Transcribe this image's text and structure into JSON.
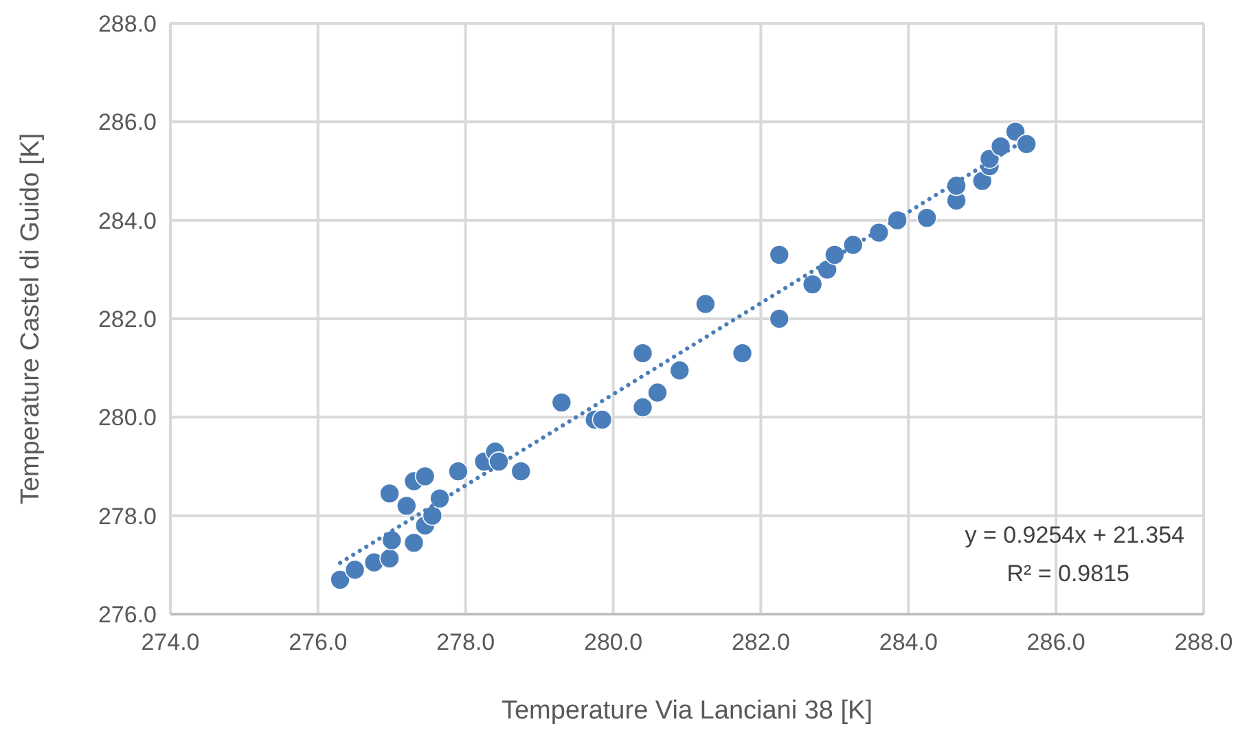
{
  "chart_data": {
    "type": "scatter",
    "xlabel": "Temperature Via Lanciani 38 [K]",
    "ylabel": "Temperature Castel di Guido [K]",
    "xlim": [
      274,
      288
    ],
    "xticks": [
      {
        "value": 274,
        "label": "274.0"
      },
      {
        "value": 276,
        "label": "276.0"
      },
      {
        "value": 278,
        "label": "278.0"
      },
      {
        "value": 280,
        "label": "280.0"
      },
      {
        "value": 282,
        "label": "282.0"
      },
      {
        "value": 284,
        "label": "284.0"
      },
      {
        "value": 286,
        "label": "286.0"
      },
      {
        "value": 288,
        "label": "288.0"
      }
    ],
    "ylim": [
      276,
      288
    ],
    "yticks": [
      {
        "value": 276,
        "label": "276.0"
      },
      {
        "value": 278,
        "label": "278.0"
      },
      {
        "value": 280,
        "label": "280.0"
      },
      {
        "value": 282,
        "label": "282.0"
      },
      {
        "value": 284,
        "label": "284.0"
      },
      {
        "value": 286,
        "label": "286.0"
      },
      {
        "value": 288,
        "label": "288.0"
      }
    ],
    "grid": true,
    "series": [
      {
        "type": "scatter",
        "color": "#4a7ebb",
        "marker": "circle",
        "x": [
          276.3,
          276.5,
          276.76,
          276.97,
          276.97,
          277.0,
          277.2,
          277.3,
          277.3,
          277.45,
          277.45,
          277.55,
          277.65,
          277.9,
          278.25,
          278.4,
          278.45,
          278.75,
          279.3,
          279.75,
          279.85,
          280.4,
          280.4,
          280.6,
          280.9,
          281.25,
          281.75,
          282.25,
          282.25,
          282.7,
          282.9,
          283.0,
          283.25,
          283.6,
          283.85,
          284.25,
          284.65,
          284.65,
          285.0,
          285.1,
          285.1,
          285.25,
          285.45,
          285.6
        ],
        "values": [
          276.7,
          276.9,
          277.05,
          277.13,
          278.45,
          277.5,
          278.2,
          277.45,
          278.7,
          278.8,
          277.8,
          278.0,
          278.35,
          278.9,
          279.1,
          279.3,
          279.1,
          278.9,
          280.3,
          279.95,
          279.95,
          281.3,
          280.2,
          280.5,
          280.95,
          282.3,
          281.3,
          283.3,
          282.0,
          282.7,
          283.0,
          283.3,
          283.5,
          283.75,
          284.0,
          284.05,
          284.4,
          284.7,
          284.8,
          285.1,
          285.25,
          285.5,
          285.8,
          285.55
        ]
      },
      {
        "type": "line",
        "color": "#4a7ebb",
        "line_style": "dotted",
        "marker": "none",
        "x": [
          276.3,
          285.6
        ],
        "values": [
          277.04,
          285.65
        ]
      }
    ],
    "annotations": [
      "y = 0.9254x + 21.354",
      "R² = 0.9815"
    ]
  }
}
